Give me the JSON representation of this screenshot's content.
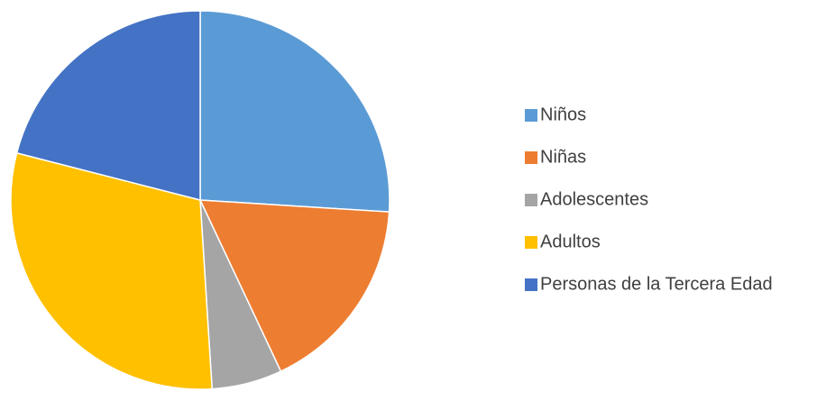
{
  "chart_data": {
    "type": "pie",
    "categories": [
      "Niños",
      "Niñas",
      "Adolescentes",
      "Adultos",
      "Personas de la Tercera Edad"
    ],
    "values": [
      26,
      17,
      6,
      30,
      21
    ],
    "colors": [
      "#5b9bd5",
      "#ed7d31",
      "#a5a5a5",
      "#ffc000",
      "#4472c4"
    ],
    "legend": "right"
  }
}
